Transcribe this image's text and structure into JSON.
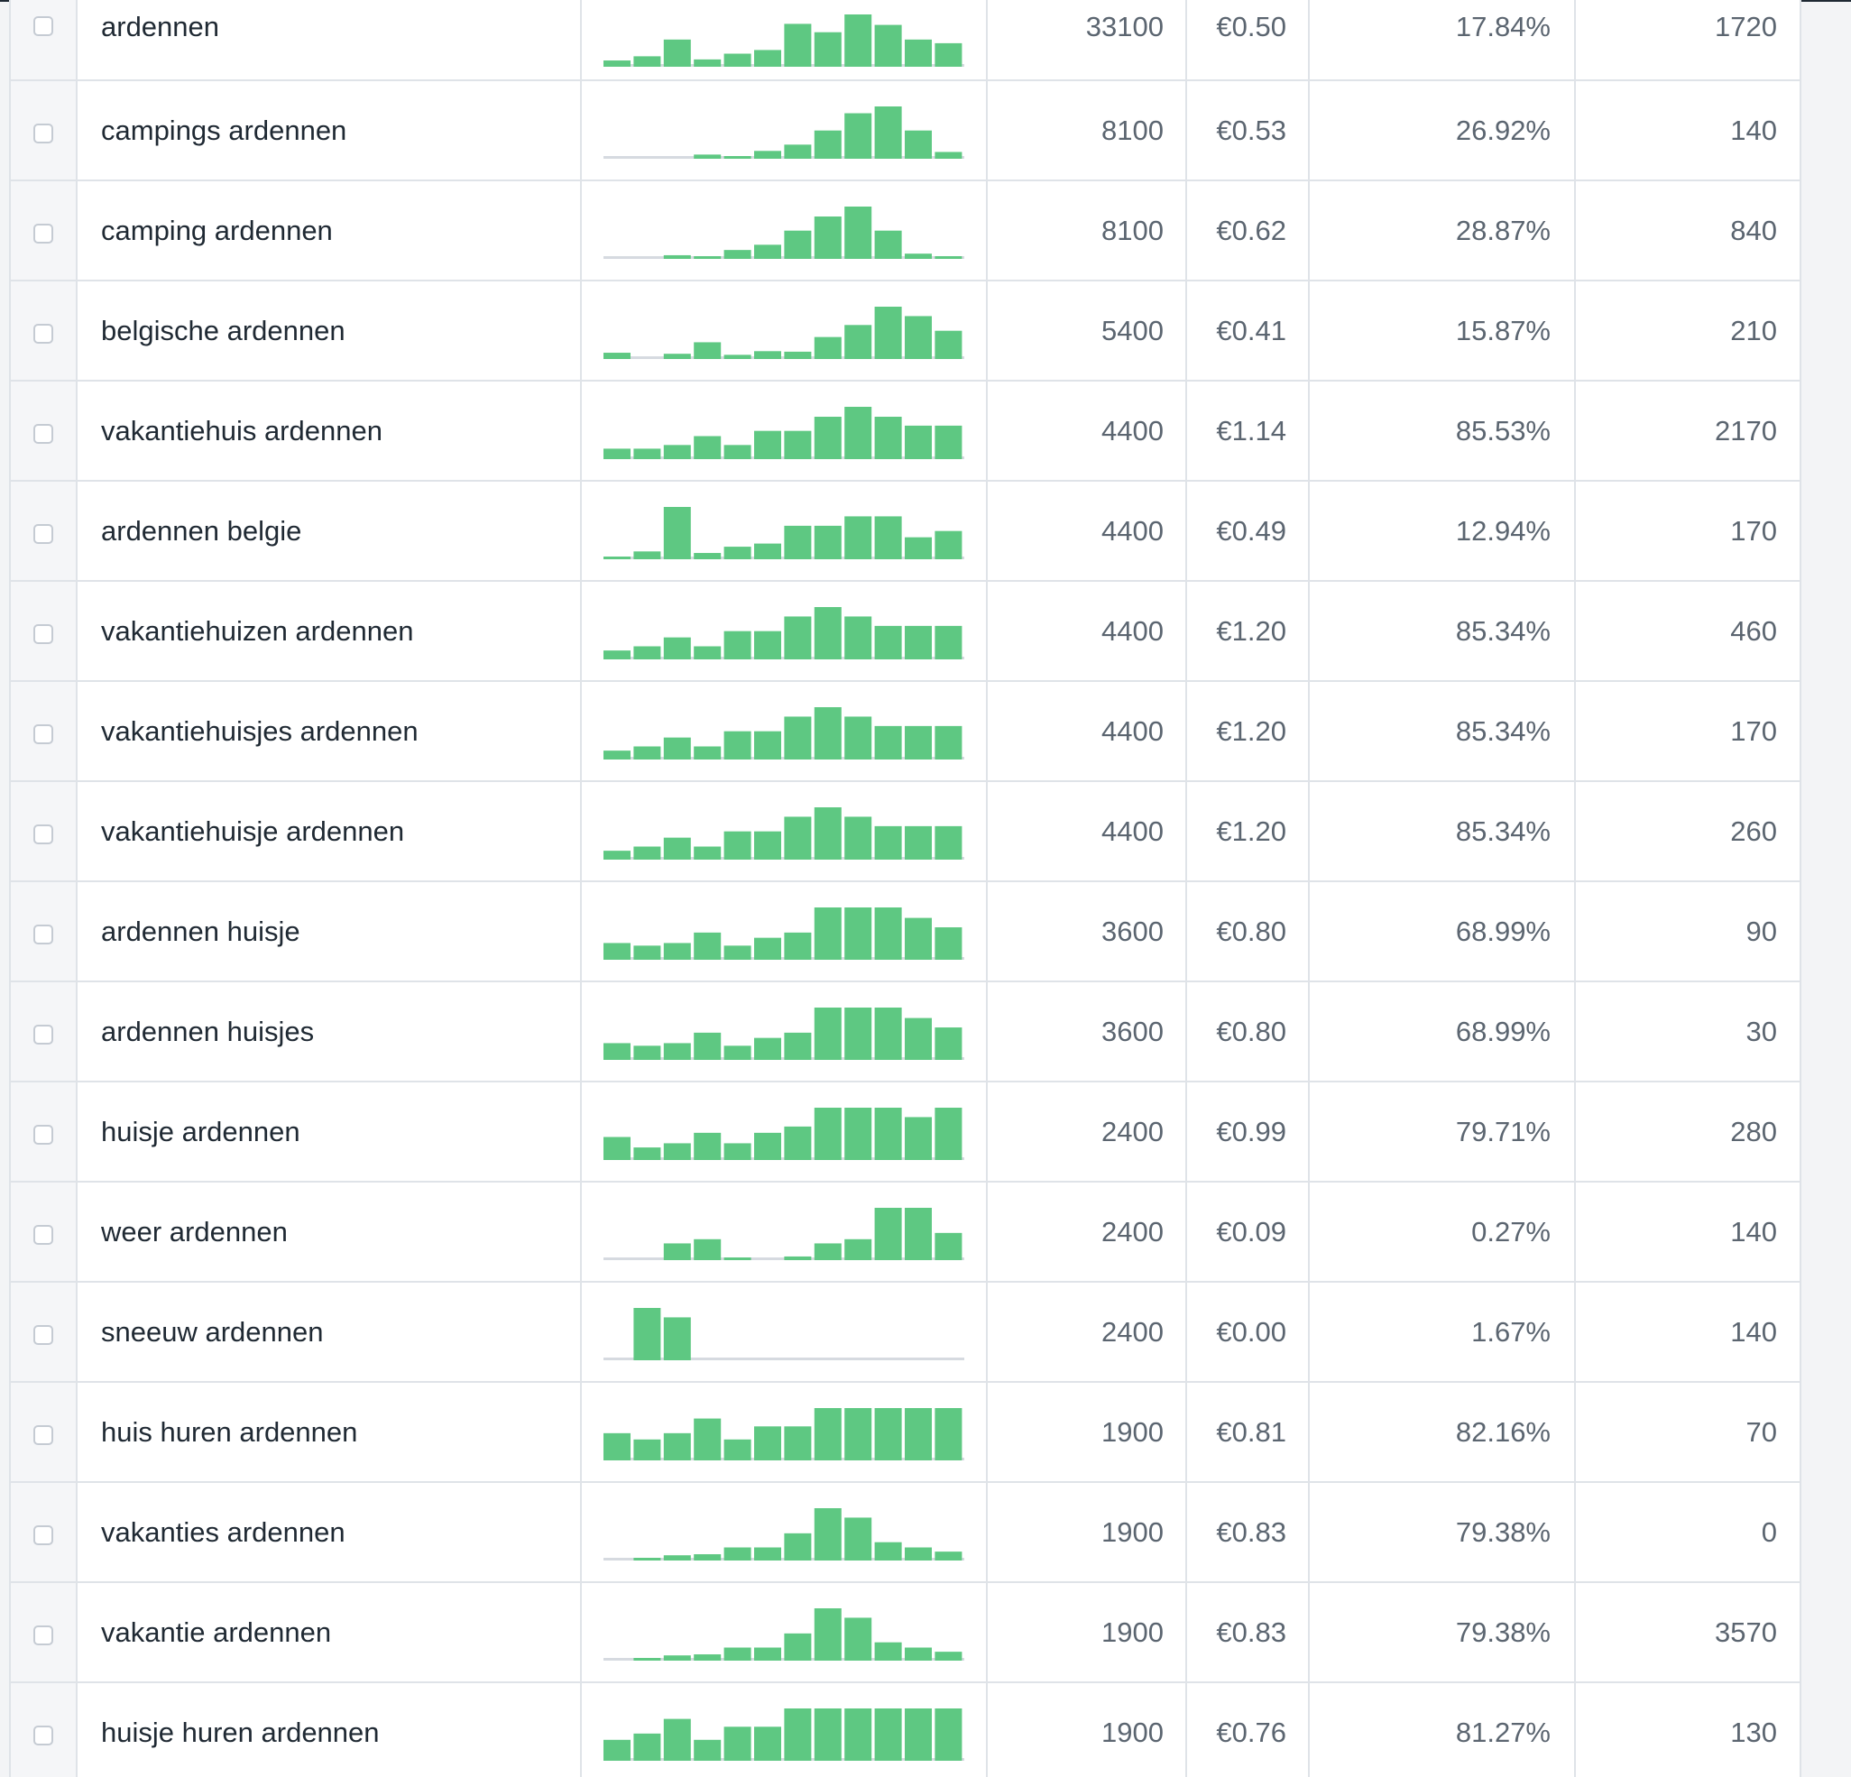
{
  "colors": {
    "bar": "#5ec882",
    "baseline": "#d6dae0",
    "grid": "#dfe3e8",
    "text": "#1f2933",
    "muted": "#5b6570"
  },
  "rows": [
    {
      "keyword": "ardennen",
      "volume": "33100",
      "cpc": "€0.50",
      "competition": "17.84%",
      "results": "1720",
      "trend": [
        0.12,
        0.2,
        0.52,
        0.14,
        0.25,
        0.32,
        0.82,
        0.66,
        1.0,
        0.8,
        0.52,
        0.45
      ]
    },
    {
      "keyword": "campings ardennen",
      "volume": "8100",
      "cpc": "€0.53",
      "competition": "26.92%",
      "results": "140",
      "trend": [
        0,
        0,
        0,
        0.08,
        0.05,
        0.15,
        0.27,
        0.54,
        0.87,
        1.0,
        0.54,
        0.13
      ]
    },
    {
      "keyword": "camping ardennen",
      "volume": "8100",
      "cpc": "€0.62",
      "competition": "28.87%",
      "results": "840",
      "trend": [
        0,
        0,
        0.07,
        0.04,
        0.17,
        0.27,
        0.54,
        0.81,
        1.0,
        0.54,
        0.1,
        0.04
      ]
    },
    {
      "keyword": "belgische ardennen",
      "volume": "5400",
      "cpc": "€0.41",
      "competition": "15.87%",
      "results": "210",
      "trend": [
        0.12,
        0,
        0.1,
        0.32,
        0.08,
        0.15,
        0.14,
        0.42,
        0.65,
        1.0,
        0.82,
        0.54
      ]
    },
    {
      "keyword": "vakantiehuis ardennen",
      "volume": "4400",
      "cpc": "€1.14",
      "competition": "85.53%",
      "results": "2170",
      "trend": [
        0.2,
        0.2,
        0.27,
        0.44,
        0.27,
        0.54,
        0.54,
        0.81,
        1.0,
        0.81,
        0.64,
        0.64
      ]
    },
    {
      "keyword": "ardennen belgie",
      "volume": "4400",
      "cpc": "€0.49",
      "competition": "12.94%",
      "results": "170",
      "trend": [
        0.03,
        0.15,
        1.0,
        0.12,
        0.24,
        0.3,
        0.64,
        0.64,
        0.82,
        0.82,
        0.42,
        0.54
      ]
    },
    {
      "keyword": "vakantiehuizen ardennen",
      "volume": "4400",
      "cpc": "€1.20",
      "competition": "85.34%",
      "results": "460",
      "trend": [
        0.17,
        0.25,
        0.42,
        0.25,
        0.54,
        0.54,
        0.82,
        1.0,
        0.82,
        0.64,
        0.64,
        0.64
      ]
    },
    {
      "keyword": "vakantiehuisjes ardennen",
      "volume": "4400",
      "cpc": "€1.20",
      "competition": "85.34%",
      "results": "170",
      "trend": [
        0.17,
        0.25,
        0.42,
        0.25,
        0.54,
        0.54,
        0.82,
        1.0,
        0.82,
        0.64,
        0.64,
        0.64
      ]
    },
    {
      "keyword": "vakantiehuisje ardennen",
      "volume": "4400",
      "cpc": "€1.20",
      "competition": "85.34%",
      "results": "260",
      "trend": [
        0.17,
        0.25,
        0.42,
        0.25,
        0.54,
        0.54,
        0.82,
        1.0,
        0.82,
        0.64,
        0.64,
        0.64
      ]
    },
    {
      "keyword": "ardennen huisje",
      "volume": "3600",
      "cpc": "€0.80",
      "competition": "68.99%",
      "results": "90",
      "trend": [
        0.32,
        0.27,
        0.32,
        0.52,
        0.27,
        0.42,
        0.52,
        1.0,
        1.0,
        1.0,
        0.8,
        0.62
      ]
    },
    {
      "keyword": "ardennen huisjes",
      "volume": "3600",
      "cpc": "€0.80",
      "competition": "68.99%",
      "results": "30",
      "trend": [
        0.32,
        0.27,
        0.32,
        0.52,
        0.27,
        0.42,
        0.52,
        1.0,
        1.0,
        1.0,
        0.8,
        0.62
      ]
    },
    {
      "keyword": "huisje ardennen",
      "volume": "2400",
      "cpc": "€0.99",
      "competition": "79.71%",
      "results": "280",
      "trend": [
        0.44,
        0.24,
        0.32,
        0.52,
        0.32,
        0.52,
        0.64,
        1.0,
        1.0,
        1.0,
        0.82,
        1.0
      ]
    },
    {
      "keyword": "weer ardennen",
      "volume": "2400",
      "cpc": "€0.09",
      "competition": "0.27%",
      "results": "140",
      "trend": [
        0,
        0,
        0.32,
        0.4,
        0.02,
        0,
        0.07,
        0.32,
        0.4,
        1.0,
        1.0,
        0.52
      ]
    },
    {
      "keyword": "sneeuw ardennen",
      "volume": "2400",
      "cpc": "€0.00",
      "competition": "1.67%",
      "results": "140",
      "trend": [
        0,
        1.0,
        0.82,
        0,
        0,
        0,
        0,
        0,
        0,
        0,
        0,
        0
      ]
    },
    {
      "keyword": "huis huren ardennen",
      "volume": "1900",
      "cpc": "€0.81",
      "competition": "82.16%",
      "results": "70",
      "trend": [
        0.52,
        0.4,
        0.52,
        0.8,
        0.4,
        0.65,
        0.65,
        1.0,
        1.0,
        1.0,
        1.0,
        1.0
      ]
    },
    {
      "keyword": "vakanties ardennen",
      "volume": "1900",
      "cpc": "€0.83",
      "competition": "79.38%",
      "results": "0",
      "trend": [
        0,
        0.02,
        0.1,
        0.12,
        0.25,
        0.25,
        0.52,
        1.0,
        0.82,
        0.35,
        0.25,
        0.17
      ]
    },
    {
      "keyword": "vakantie ardennen",
      "volume": "1900",
      "cpc": "€0.83",
      "competition": "79.38%",
      "results": "3570",
      "trend": [
        0,
        0.02,
        0.1,
        0.12,
        0.25,
        0.25,
        0.52,
        1.0,
        0.82,
        0.35,
        0.25,
        0.17
      ]
    },
    {
      "keyword": "huisje huren ardennen",
      "volume": "1900",
      "cpc": "€0.76",
      "competition": "81.27%",
      "results": "130",
      "trend": [
        0.4,
        0.52,
        0.8,
        0.4,
        0.65,
        0.65,
        1.0,
        1.0,
        1.0,
        1.0,
        1.0,
        1.0
      ]
    }
  ]
}
